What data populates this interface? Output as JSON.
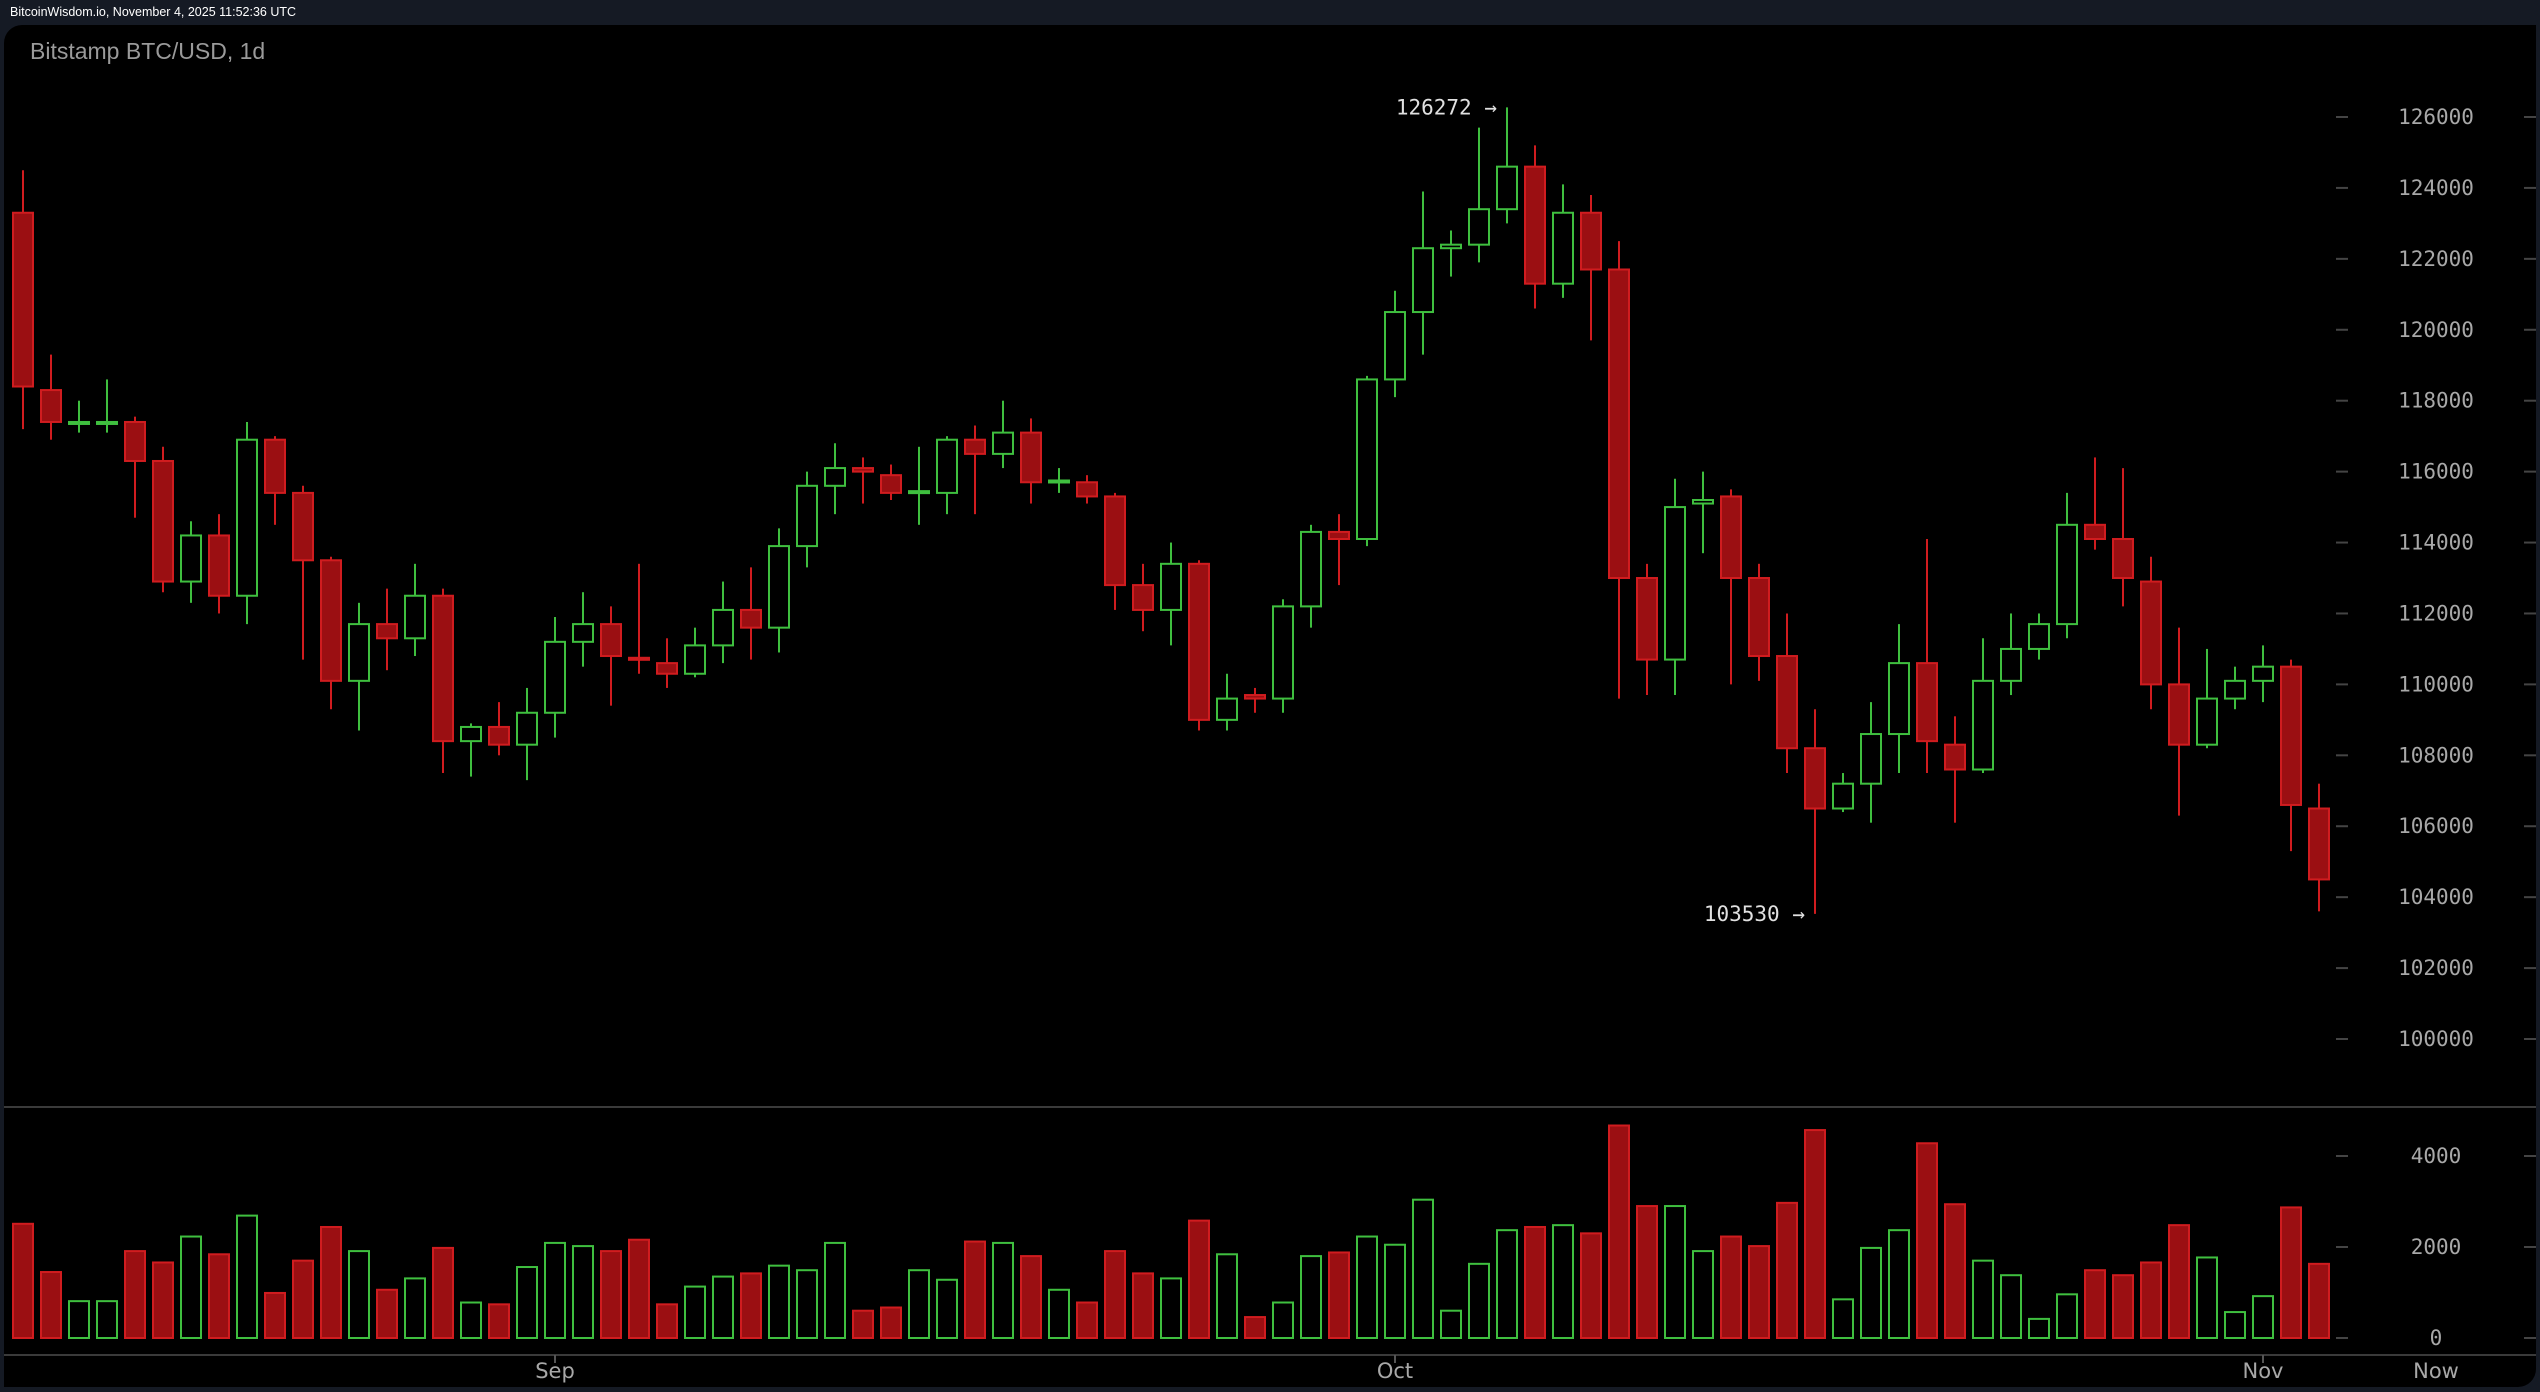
{
  "header": {
    "timestamp": "BitcoinWisdom.io, November 4, 2025 11:52:36 UTC"
  },
  "chart": {
    "title": "Bitstamp BTC/USD, 1d",
    "annotations": {
      "high_label": "126272 →",
      "low_label": "103530 →"
    },
    "colors": {
      "up": "#3fbf3f",
      "down_fill": "#9b0f12",
      "down_border": "#d01c1f",
      "background": "#000000",
      "frame": "#151a24",
      "axis_text": "#a8a8a8"
    }
  },
  "chart_data": {
    "type": "candlestick",
    "title": "Bitstamp BTC/USD, 1d",
    "exchange": "Bitstamp",
    "pair": "BTC/USD",
    "interval": "1d",
    "price_axis": {
      "ticks": [
        126000,
        124000,
        122000,
        120000,
        118000,
        116000,
        114000,
        112000,
        110000,
        108000,
        106000,
        104000,
        102000,
        100000
      ],
      "range": [
        100000,
        126000
      ]
    },
    "volume_axis": {
      "ticks": [
        4000,
        2000,
        0
      ]
    },
    "x_axis": {
      "labels": [
        {
          "label": "Sep",
          "candle_index": 19
        },
        {
          "label": "Oct",
          "candle_index": 49
        },
        {
          "label": "Nov",
          "candle_index": 80
        },
        {
          "label": "Now",
          "position": "right-axis"
        }
      ]
    },
    "annotations": [
      {
        "text": "126272",
        "type": "high",
        "candle_index": 53
      },
      {
        "text": "103530",
        "type": "low",
        "candle_index": 64
      }
    ],
    "candles": [
      [
        123300,
        124500,
        117200,
        118400
      ],
      [
        118300,
        119300,
        116900,
        117400
      ],
      [
        117400,
        118000,
        117100,
        117400
      ],
      [
        117400,
        118600,
        117100,
        117400
      ],
      [
        117400,
        117550,
        114700,
        116300
      ],
      [
        116300,
        116700,
        112600,
        112900
      ],
      [
        112900,
        114600,
        112300,
        114200
      ],
      [
        114200,
        114800,
        112000,
        112500
      ],
      [
        112500,
        117400,
        111700,
        116900
      ],
      [
        116900,
        117000,
        114500,
        115400
      ],
      [
        115400,
        115600,
        110700,
        113500
      ],
      [
        113500,
        113600,
        109300,
        110100
      ],
      [
        110100,
        112300,
        108700,
        111700
      ],
      [
        111700,
        112700,
        110400,
        111300
      ],
      [
        111300,
        113400,
        110800,
        112500
      ],
      [
        112500,
        112700,
        107500,
        108400
      ],
      [
        108400,
        108900,
        107400,
        108800
      ],
      [
        108800,
        109500,
        108000,
        108300
      ],
      [
        108300,
        109900,
        107300,
        109200
      ],
      [
        109200,
        111900,
        108500,
        111200
      ],
      [
        111200,
        112600,
        110500,
        111700
      ],
      [
        111700,
        112200,
        109400,
        110800
      ],
      [
        110750,
        113400,
        110300,
        110700
      ],
      [
        110600,
        111300,
        109900,
        110300
      ],
      [
        110300,
        111600,
        110200,
        111100
      ],
      [
        111100,
        112900,
        110600,
        112100
      ],
      [
        112100,
        113300,
        110700,
        111600
      ],
      [
        111600,
        114400,
        110900,
        113900
      ],
      [
        113900,
        116000,
        113300,
        115600
      ],
      [
        115600,
        116800,
        114800,
        116100
      ],
      [
        116100,
        116400,
        115100,
        116000
      ],
      [
        115900,
        116200,
        115200,
        115400
      ],
      [
        115400,
        116700,
        114500,
        115450
      ],
      [
        115400,
        117000,
        114800,
        116900
      ],
      [
        116900,
        117300,
        114800,
        116500
      ],
      [
        116500,
        118000,
        116100,
        117100
      ],
      [
        117100,
        117500,
        115100,
        115700
      ],
      [
        115700,
        116100,
        115400,
        115750
      ],
      [
        115700,
        115900,
        115100,
        115300
      ],
      [
        115300,
        115400,
        112100,
        112800
      ],
      [
        112800,
        113400,
        111500,
        112100
      ],
      [
        112100,
        114000,
        111100,
        113400
      ],
      [
        113400,
        113500,
        108700,
        109000
      ],
      [
        109000,
        110300,
        108700,
        109600
      ],
      [
        109700,
        109900,
        109200,
        109600
      ],
      [
        109600,
        112400,
        109200,
        112200
      ],
      [
        112200,
        114500,
        111600,
        114300
      ],
      [
        114300,
        114800,
        112800,
        114100
      ],
      [
        114100,
        118700,
        113900,
        118600
      ],
      [
        118600,
        121100,
        118100,
        120500
      ],
      [
        120500,
        123900,
        119300,
        122300
      ],
      [
        122300,
        122800,
        121500,
        122400
      ],
      [
        122400,
        125700,
        121900,
        123400
      ],
      [
        123400,
        126272,
        123000,
        124600
      ],
      [
        124600,
        125200,
        120600,
        121300
      ],
      [
        121300,
        124100,
        120900,
        123300
      ],
      [
        123300,
        123800,
        119700,
        121700
      ],
      [
        121700,
        122500,
        109600,
        113000
      ],
      [
        113000,
        113400,
        109700,
        110700
      ],
      [
        110700,
        115800,
        109700,
        115000
      ],
      [
        115100,
        116000,
        113700,
        115200
      ],
      [
        115300,
        115500,
        110000,
        113000
      ],
      [
        113000,
        113400,
        110100,
        110800
      ],
      [
        110800,
        112000,
        107500,
        108200
      ],
      [
        108200,
        109300,
        103530,
        106500
      ],
      [
        106500,
        107500,
        106400,
        107200
      ],
      [
        107200,
        109500,
        106100,
        108600
      ],
      [
        108600,
        111700,
        107500,
        110600
      ],
      [
        110600,
        114100,
        107500,
        108400
      ],
      [
        108300,
        109100,
        106100,
        107600
      ],
      [
        107600,
        111300,
        107500,
        110100
      ],
      [
        110100,
        112000,
        109700,
        111000
      ],
      [
        111000,
        112000,
        110700,
        111700
      ],
      [
        111700,
        115400,
        111300,
        114500
      ],
      [
        114500,
        116400,
        113800,
        114100
      ],
      [
        114100,
        116100,
        112200,
        113000
      ],
      [
        112900,
        113600,
        109300,
        110000
      ],
      [
        110000,
        111600,
        106300,
        108300
      ],
      [
        108300,
        111000,
        108200,
        109600
      ],
      [
        109600,
        110500,
        109300,
        110100
      ],
      [
        110100,
        111100,
        109500,
        110500
      ],
      [
        110500,
        110700,
        105300,
        106600
      ],
      [
        106500,
        107200,
        103600,
        104500
      ]
    ],
    "candle_fields": [
      "open",
      "high",
      "low",
      "close"
    ],
    "volumes": [
      2510,
      1450,
      810,
      810,
      1910,
      1660,
      2230,
      1840,
      2690,
      990,
      1700,
      2440,
      1910,
      1060,
      1310,
      1980,
      780,
      740,
      1560,
      2090,
      2020,
      1910,
      2160,
      740,
      1130,
      1350,
      1420,
      1590,
      1490,
      2090,
      600,
      670,
      1490,
      1280,
      2120,
      2090,
      1800,
      1060,
      780,
      1910,
      1420,
      1310,
      2580,
      1840,
      460,
      780,
      1800,
      1880,
      2230,
      2050,
      3040,
      600,
      1630,
      2370,
      2440,
      2480,
      2300,
      4670,
      2900,
      2900,
      1910,
      2230,
      2020,
      2970,
      4570,
      850,
      1980,
      2370,
      4280,
      2940,
      1700,
      1380,
      420,
      960,
      1490,
      1380,
      1660,
      2480,
      1770,
      570,
      920,
      2870,
      1630
    ]
  }
}
